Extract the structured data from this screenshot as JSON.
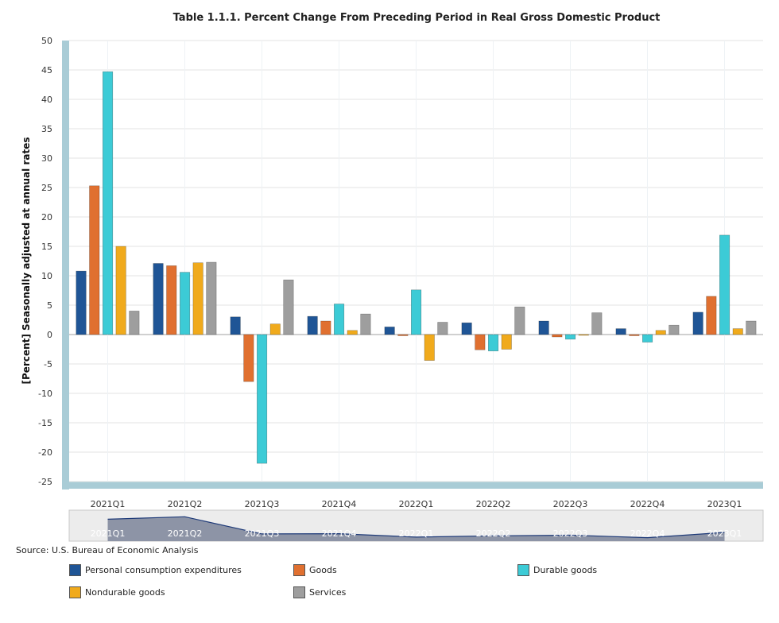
{
  "chart_data": {
    "type": "bar",
    "title": "Table 1.1.1. Percent Change From Preceding Period in Real Gross Domestic Product",
    "xlabel": "",
    "ylabel": "[Percent] Seasonally adjusted at annual rates",
    "ylim": [
      -25,
      50
    ],
    "yticks": [
      50,
      45,
      40,
      35,
      30,
      25,
      20,
      15,
      10,
      5,
      0,
      -5,
      -10,
      -15,
      -20,
      -25
    ],
    "grid": true,
    "categories": [
      "2021Q1",
      "2021Q2",
      "2021Q3",
      "2021Q4",
      "2022Q1",
      "2022Q2",
      "2022Q3",
      "2022Q4",
      "2023Q1"
    ],
    "series": [
      {
        "name": "Personal consumption expenditures",
        "color": "#1f5596",
        "values": [
          10.8,
          12.1,
          3.0,
          3.1,
          1.3,
          2.0,
          2.3,
          1.0,
          3.8
        ]
      },
      {
        "name": "Goods",
        "color": "#e07030",
        "values": [
          25.3,
          11.7,
          -8.0,
          2.3,
          -0.2,
          -2.6,
          -0.4,
          -0.2,
          6.5
        ]
      },
      {
        "name": "Durable goods",
        "color": "#3ccbd6",
        "values": [
          44.7,
          10.6,
          -21.9,
          5.2,
          7.6,
          -2.8,
          -0.8,
          -1.3,
          16.9
        ]
      },
      {
        "name": "Nondurable goods",
        "color": "#f0aa1c",
        "values": [
          15.0,
          12.2,
          1.8,
          0.7,
          -4.4,
          -2.5,
          -0.1,
          0.7,
          1.0
        ]
      },
      {
        "name": "Services",
        "color": "#9e9e9e",
        "values": [
          4.0,
          12.3,
          9.3,
          3.5,
          2.1,
          4.7,
          3.7,
          1.6,
          2.3
        ]
      }
    ],
    "navigator": {
      "series_name": "Personal consumption expenditures"
    }
  },
  "source_note": "Source: U.S. Bureau of Economic Analysis"
}
